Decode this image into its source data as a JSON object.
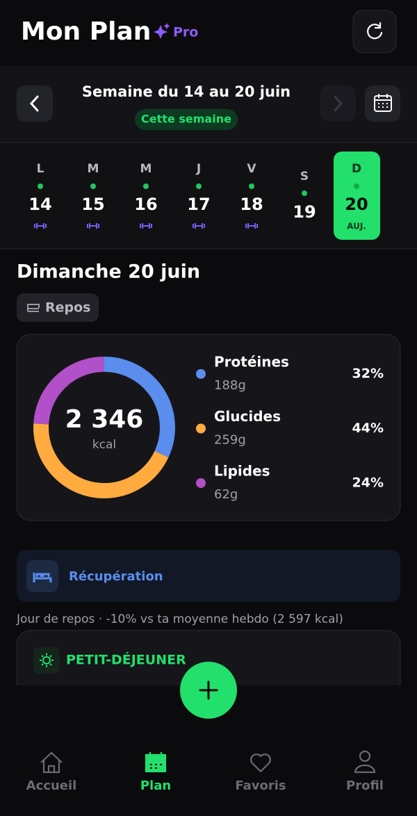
{
  "header": {
    "title": "Mon Plan",
    "badge": "Pro"
  },
  "week": {
    "title": "Semaine du 14 au 20 juin",
    "badge": "Cette semaine",
    "today_label": "AUJ.",
    "days": [
      {
        "letter": "L",
        "number": "14",
        "workout": true,
        "today": false
      },
      {
        "letter": "M",
        "number": "15",
        "workout": true,
        "today": false
      },
      {
        "letter": "M",
        "number": "16",
        "workout": true,
        "today": false
      },
      {
        "letter": "J",
        "number": "17",
        "workout": true,
        "today": false
      },
      {
        "letter": "V",
        "number": "18",
        "workout": true,
        "today": false
      },
      {
        "letter": "S",
        "number": "19",
        "workout": false,
        "today": false
      },
      {
        "letter": "D",
        "number": "20",
        "workout": false,
        "today": true
      }
    ]
  },
  "day": {
    "title": "Dimanche 20 juin",
    "tag": "Repos"
  },
  "nutrition": {
    "total": "2 346",
    "unit": "kcal",
    "macros": {
      "labels": [
        "Protéines",
        "Glucides",
        "Lipides"
      ],
      "amounts": [
        "188g",
        "259g",
        "62g"
      ],
      "values": [
        32,
        44,
        24
      ],
      "value_labels": [
        "32%",
        "44%",
        "24%"
      ],
      "colors": [
        "#5b8def",
        "#ffab40",
        "#b150c8"
      ]
    }
  },
  "recovery": {
    "title": "Récupération",
    "note": "Jour de repos · -10% vs ta moyenne hebdo (2 597 kcal)"
  },
  "meal": {
    "title": "PETIT-DÉJEUNER"
  },
  "nav": [
    "Accueil",
    "Plan",
    "Favoris",
    "Profil"
  ]
}
